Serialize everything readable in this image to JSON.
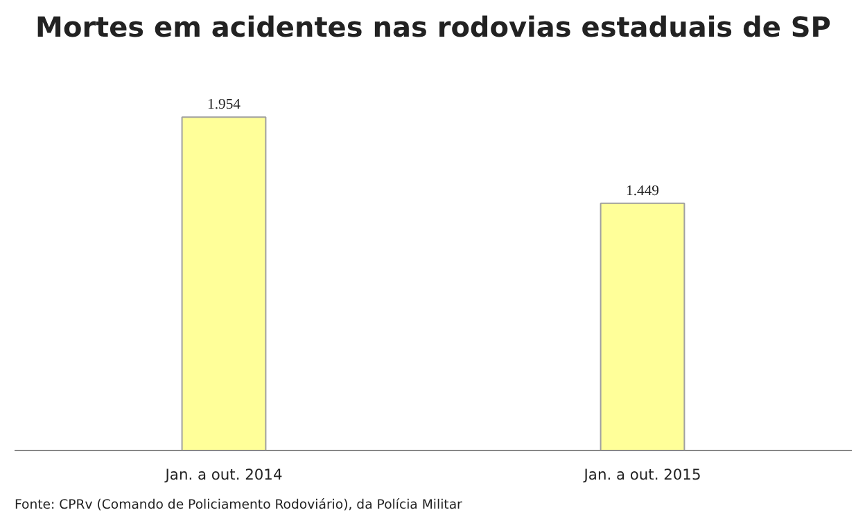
{
  "chart_data": {
    "type": "bar",
    "title": "Mortes em acidentes nas rodovias estaduais de SP",
    "categories": [
      "Jan. a out. 2014",
      "Jan. a out. 2015"
    ],
    "values": [
      1954,
      1449
    ],
    "value_labels": [
      "1.954",
      "1.449"
    ],
    "color": "#ffff99",
    "grid": false,
    "annotations": [
      "Fonte: CPRv (Comando de Policiamento Rodoviário), da Polícia Militar"
    ]
  }
}
